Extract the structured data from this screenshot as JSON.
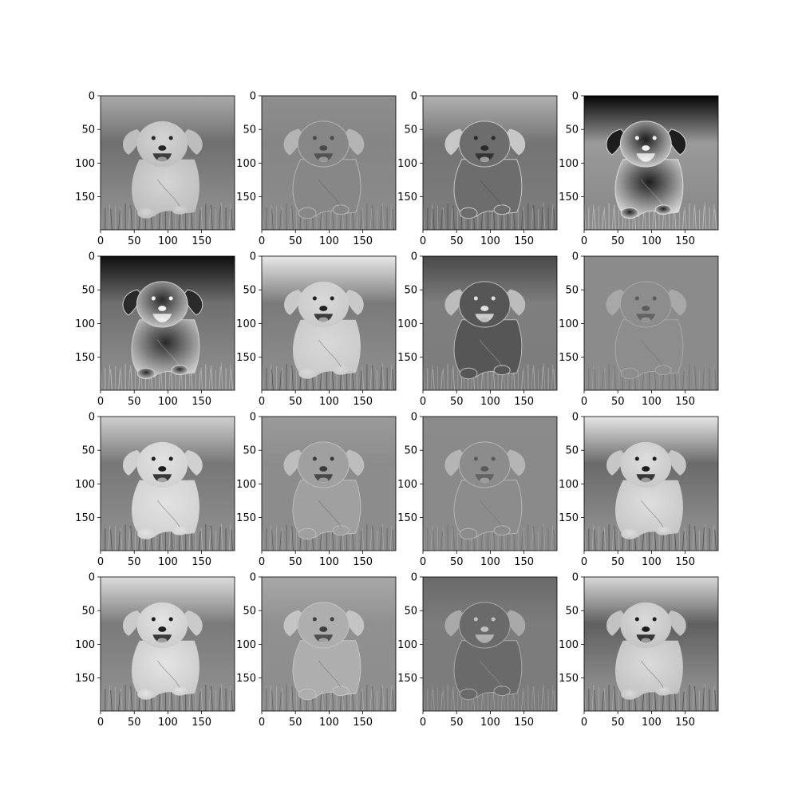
{
  "figure": {
    "rows": 4,
    "cols": 4,
    "background": "#ffffff",
    "image_extent": [
      0,
      199
    ],
    "x_ticks": [
      0,
      50,
      100,
      150
    ],
    "y_ticks": [
      0,
      50,
      100,
      150
    ],
    "x_tick_labels": [
      "0",
      "50",
      "100",
      "150"
    ],
    "y_tick_labels": [
      "0",
      "50",
      "100",
      "150"
    ]
  },
  "panels": [
    {
      "name": "panel-r1-c1",
      "style": "plain",
      "bg_top": "#a9a9a9",
      "bg_mid": "#6f6f6f",
      "bg_bottom": "#8a8a8a",
      "body": "#d4d4d4",
      "feature": "#262626",
      "edge": "#bdbdbd"
    },
    {
      "name": "panel-r1-c2",
      "style": "edge",
      "bg_top": "#8e8e8e",
      "bg_mid": "#858585",
      "bg_bottom": "#8a8a8a",
      "body": "#878787",
      "feature": "#4a4a4a",
      "edge": "#b4b4b4"
    },
    {
      "name": "panel-r1-c3",
      "style": "edge",
      "bg_top": "#b0b0b0",
      "bg_mid": "#747474",
      "bg_bottom": "#7b7b7b",
      "body": "#6d6d6d",
      "feature": "#2a2a2a",
      "edge": "#c7c7c7"
    },
    {
      "name": "panel-r1-c4",
      "style": "inverted",
      "bg_top": "#050505",
      "bg_mid": "#9a9a9a",
      "bg_bottom": "#8c8c8c",
      "body": "#1d1d1d",
      "feature": "#f0f0f0",
      "edge": "#d9d9d9"
    },
    {
      "name": "panel-r2-c1",
      "style": "inverted",
      "bg_top": "#0f0f0f",
      "bg_mid": "#6f6f6f",
      "bg_bottom": "#888888",
      "body": "#2a2a2a",
      "feature": "#f2f2f2",
      "edge": "#cfcfcf"
    },
    {
      "name": "panel-r2-c2",
      "style": "plain",
      "bg_top": "#e8e8e8",
      "bg_mid": "#7a7a7a",
      "bg_bottom": "#8a8a8a",
      "body": "#d8d8d8",
      "feature": "#222222",
      "edge": "#c9c9c9"
    },
    {
      "name": "panel-r2-c3",
      "style": "edge",
      "bg_top": "#4a4a4a",
      "bg_mid": "#7e7e7e",
      "bg_bottom": "#7d7d7d",
      "body": "#565656",
      "feature": "#e0e0e0",
      "edge": "#bcbcbc"
    },
    {
      "name": "panel-r2-c4",
      "style": "edge",
      "bg_top": "#8b8b8b",
      "bg_mid": "#8b8b8b",
      "bg_bottom": "#8b8b8b",
      "body": "#8d8d8d",
      "feature": "#5c5c5c",
      "edge": "#a8a8a8"
    },
    {
      "name": "panel-r3-c1",
      "style": "plain",
      "bg_top": "#cfcfcf",
      "bg_mid": "#777777",
      "bg_bottom": "#8a8a8a",
      "body": "#e2e2e2",
      "feature": "#1c1c1c",
      "edge": "#d0d0d0"
    },
    {
      "name": "panel-r3-c2",
      "style": "edge",
      "bg_top": "#9a9a9a",
      "bg_mid": "#8c8c8c",
      "bg_bottom": "#8c8c8c",
      "body": "#a0a0a0",
      "feature": "#3a3a3a",
      "edge": "#bdbdbd"
    },
    {
      "name": "panel-r3-c3",
      "style": "edge",
      "bg_top": "#8b8b8b",
      "bg_mid": "#8a8a8a",
      "bg_bottom": "#8a8a8a",
      "body": "#8c8c8c",
      "feature": "#5a5a5a",
      "edge": "#b5b5b5"
    },
    {
      "name": "panel-r3-c4",
      "style": "plain",
      "bg_top": "#e6e6e6",
      "bg_mid": "#6a6a6a",
      "bg_bottom": "#8a8a8a",
      "body": "#dedede",
      "feature": "#1e1e1e",
      "edge": "#c6c6c6"
    },
    {
      "name": "panel-r4-c1",
      "style": "plain",
      "bg_top": "#dcdcdc",
      "bg_mid": "#7a7a7a",
      "bg_bottom": "#8c8c8c",
      "body": "#e4e4e4",
      "feature": "#1e1e1e",
      "edge": "#cacaca"
    },
    {
      "name": "panel-r4-c2",
      "style": "edge",
      "bg_top": "#a8a8a8",
      "bg_mid": "#909090",
      "bg_bottom": "#8e8e8e",
      "body": "#aeaeae",
      "feature": "#3e3e3e",
      "edge": "#c4c4c4"
    },
    {
      "name": "panel-r4-c3",
      "style": "edge",
      "bg_top": "#6a6a6a",
      "bg_mid": "#7c7c7c",
      "bg_bottom": "#7c7c7c",
      "body": "#6a6a6a",
      "feature": "#bfbfbf",
      "edge": "#a9a9a9"
    },
    {
      "name": "panel-r4-c4",
      "style": "plain",
      "bg_top": "#d8d8d8",
      "bg_mid": "#606060",
      "bg_bottom": "#8a8a8a",
      "body": "#dadada",
      "feature": "#1c1c1c",
      "edge": "#c2c2c2"
    }
  ]
}
